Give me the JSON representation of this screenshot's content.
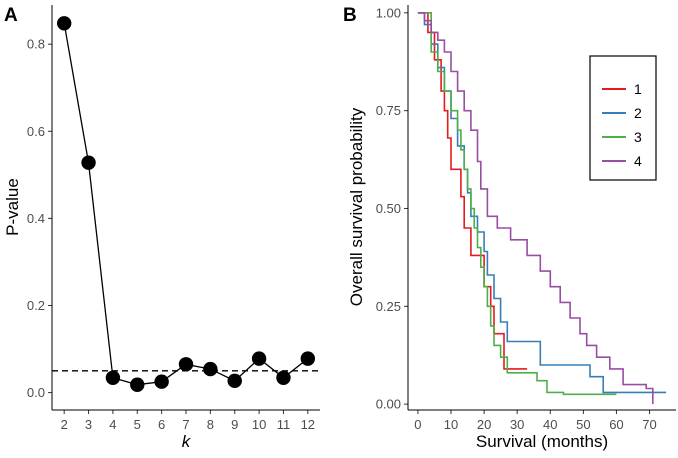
{
  "chart_data": [
    {
      "panel_label": "A",
      "type": "line",
      "xlabel": "k",
      "ylabel": "P-value",
      "x": [
        2,
        3,
        4,
        5,
        6,
        7,
        8,
        9,
        10,
        11,
        12
      ],
      "y": [
        0.848,
        0.528,
        0.034,
        0.018,
        0.025,
        0.065,
        0.054,
        0.027,
        0.078,
        0.034,
        0.078
      ],
      "xticks": [
        2,
        3,
        4,
        5,
        6,
        7,
        8,
        9,
        10,
        11,
        12
      ],
      "yticks": [
        0.0,
        0.2,
        0.4,
        0.6,
        0.8
      ],
      "ytick_labels": [
        "0.0",
        "0.2",
        "0.4",
        "0.6",
        "0.8"
      ],
      "xlim": [
        1.5,
        12.5
      ],
      "ylim": [
        -0.04,
        0.89
      ],
      "reference_line": {
        "y": 0.05,
        "style": "dashed"
      }
    },
    {
      "panel_label": "B",
      "type": "line",
      "subtype": "kaplan-meier step",
      "xlabel": "Survival (months)",
      "ylabel": "Overall survival probability",
      "xticks": [
        0,
        10,
        20,
        30,
        40,
        50,
        60,
        70
      ],
      "yticks": [
        0,
        0.25,
        0.5,
        0.75,
        1.0
      ],
      "ytick_labels": [
        "0.00",
        "0.25",
        "0.50",
        "0.75",
        "1.00"
      ],
      "xlim": [
        -3,
        78
      ],
      "ylim": [
        -0.015,
        1.02
      ],
      "legend_position": "top-right",
      "series": [
        {
          "name": "1",
          "color": "#e41a1c",
          "points": [
            [
              0,
              1.0
            ],
            [
              3,
              1.0
            ],
            [
              3,
              0.95
            ],
            [
              5,
              0.95
            ],
            [
              5,
              0.88
            ],
            [
              7,
              0.88
            ],
            [
              7,
              0.8
            ],
            [
              8,
              0.8
            ],
            [
              8,
              0.75
            ],
            [
              9,
              0.75
            ],
            [
              9,
              0.68
            ],
            [
              10,
              0.68
            ],
            [
              10,
              0.6
            ],
            [
              13,
              0.6
            ],
            [
              13,
              0.53
            ],
            [
              14,
              0.53
            ],
            [
              14,
              0.45
            ],
            [
              16,
              0.45
            ],
            [
              16,
              0.38
            ],
            [
              20,
              0.38
            ],
            [
              20,
              0.3
            ],
            [
              22,
              0.3
            ],
            [
              22,
              0.25
            ],
            [
              23,
              0.25
            ],
            [
              23,
              0.18
            ],
            [
              26,
              0.18
            ],
            [
              26,
              0.09
            ],
            [
              33,
              0.09
            ]
          ]
        },
        {
          "name": "2",
          "color": "#377eb8",
          "points": [
            [
              0,
              1.0
            ],
            [
              2,
              1.0
            ],
            [
              2,
              0.97
            ],
            [
              4,
              0.97
            ],
            [
              4,
              0.92
            ],
            [
              6,
              0.92
            ],
            [
              6,
              0.86
            ],
            [
              8,
              0.86
            ],
            [
              8,
              0.8
            ],
            [
              10,
              0.8
            ],
            [
              10,
              0.73
            ],
            [
              12,
              0.73
            ],
            [
              12,
              0.66
            ],
            [
              14,
              0.66
            ],
            [
              14,
              0.6
            ],
            [
              15,
              0.6
            ],
            [
              15,
              0.54
            ],
            [
              16,
              0.54
            ],
            [
              16,
              0.48
            ],
            [
              18,
              0.48
            ],
            [
              18,
              0.44
            ],
            [
              20,
              0.44
            ],
            [
              20,
              0.39
            ],
            [
              21,
              0.39
            ],
            [
              21,
              0.33
            ],
            [
              23,
              0.33
            ],
            [
              23,
              0.27
            ],
            [
              25,
              0.27
            ],
            [
              25,
              0.21
            ],
            [
              27,
              0.21
            ],
            [
              27,
              0.16
            ],
            [
              37,
              0.16
            ],
            [
              37,
              0.1
            ],
            [
              52,
              0.1
            ],
            [
              52,
              0.07
            ],
            [
              56,
              0.07
            ],
            [
              56,
              0.03
            ],
            [
              75,
              0.03
            ]
          ]
        },
        {
          "name": "3",
          "color": "#4daf4a",
          "points": [
            [
              0,
              1.0
            ],
            [
              4,
              1.0
            ],
            [
              4,
              0.9
            ],
            [
              6,
              0.9
            ],
            [
              6,
              0.85
            ],
            [
              8,
              0.85
            ],
            [
              8,
              0.8
            ],
            [
              10,
              0.8
            ],
            [
              10,
              0.75
            ],
            [
              12,
              0.75
            ],
            [
              12,
              0.7
            ],
            [
              13,
              0.7
            ],
            [
              13,
              0.65
            ],
            [
              14,
              0.65
            ],
            [
              14,
              0.6
            ],
            [
              15,
              0.6
            ],
            [
              15,
              0.55
            ],
            [
              16,
              0.55
            ],
            [
              16,
              0.5
            ],
            [
              17,
              0.5
            ],
            [
              17,
              0.45
            ],
            [
              18,
              0.45
            ],
            [
              18,
              0.4
            ],
            [
              19,
              0.4
            ],
            [
              19,
              0.35
            ],
            [
              20,
              0.35
            ],
            [
              20,
              0.3
            ],
            [
              21,
              0.3
            ],
            [
              21,
              0.25
            ],
            [
              22,
              0.25
            ],
            [
              22,
              0.2
            ],
            [
              23,
              0.2
            ],
            [
              23,
              0.15
            ],
            [
              25,
              0.15
            ],
            [
              25,
              0.12
            ],
            [
              27,
              0.12
            ],
            [
              27,
              0.08
            ],
            [
              36,
              0.08
            ],
            [
              36,
              0.06
            ],
            [
              39,
              0.06
            ],
            [
              39,
              0.03
            ],
            [
              44,
              0.03
            ],
            [
              44,
              0.025
            ],
            [
              60,
              0.025
            ]
          ]
        },
        {
          "name": "4",
          "color": "#984ea3",
          "points": [
            [
              0,
              1.0
            ],
            [
              2,
              1.0
            ],
            [
              2,
              0.98
            ],
            [
              4,
              0.98
            ],
            [
              4,
              0.95
            ],
            [
              6,
              0.95
            ],
            [
              6,
              0.93
            ],
            [
              8,
              0.93
            ],
            [
              8,
              0.9
            ],
            [
              10,
              0.9
            ],
            [
              10,
              0.85
            ],
            [
              12,
              0.85
            ],
            [
              12,
              0.8
            ],
            [
              14,
              0.8
            ],
            [
              14,
              0.75
            ],
            [
              16,
              0.75
            ],
            [
              16,
              0.7
            ],
            [
              18,
              0.7
            ],
            [
              18,
              0.62
            ],
            [
              19,
              0.62
            ],
            [
              19,
              0.55
            ],
            [
              21,
              0.55
            ],
            [
              21,
              0.48
            ],
            [
              24,
              0.48
            ],
            [
              24,
              0.45
            ],
            [
              28,
              0.45
            ],
            [
              28,
              0.42
            ],
            [
              33,
              0.42
            ],
            [
              33,
              0.38
            ],
            [
              37,
              0.38
            ],
            [
              37,
              0.34
            ],
            [
              40,
              0.34
            ],
            [
              40,
              0.3
            ],
            [
              43,
              0.3
            ],
            [
              43,
              0.26
            ],
            [
              46,
              0.26
            ],
            [
              46,
              0.22
            ],
            [
              49,
              0.22
            ],
            [
              49,
              0.18
            ],
            [
              51,
              0.18
            ],
            [
              51,
              0.15
            ],
            [
              54,
              0.15
            ],
            [
              54,
              0.12
            ],
            [
              58,
              0.12
            ],
            [
              58,
              0.09
            ],
            [
              62,
              0.09
            ],
            [
              62,
              0.05
            ],
            [
              69,
              0.05
            ],
            [
              69,
              0.04
            ],
            [
              71,
              0.04
            ],
            [
              71,
              0.0
            ]
          ]
        }
      ]
    }
  ]
}
